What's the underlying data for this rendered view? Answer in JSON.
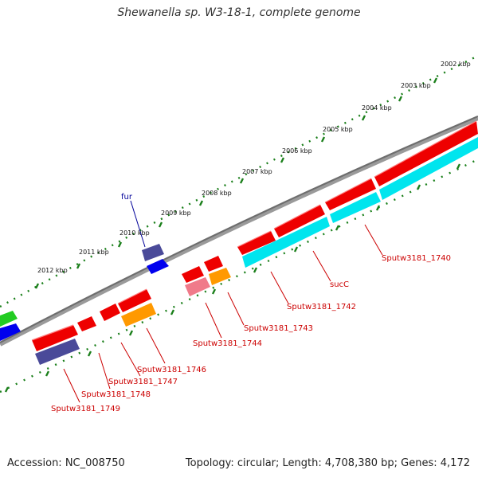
{
  "title": "Shewanella sp. W3-18-1, complete genome",
  "footer": {
    "accession": "Accession: NC_008750",
    "summary": "Topology: circular; Length: 4,708,380 bp; Genes: 4,172"
  },
  "colors": {
    "backbone": "#808080",
    "ruler_dots": "#1a7f1a",
    "gene_label": "#cc0000",
    "highlight_label": "#000099"
  },
  "ruler_labels": [
    "2002 kbp",
    "2003 kbp",
    "2004 kbp",
    "2005 kbp",
    "2006 kbp",
    "2007 kbp",
    "2008 kbp",
    "2009 kbp",
    "2010 kbp",
    "2011 kbp",
    "2012 kbp"
  ],
  "gene_labels": [
    {
      "text": "Sputw3181_1740",
      "color": "#cc0000"
    },
    {
      "text": "sucC",
      "color": "#cc0000"
    },
    {
      "text": "Sputw3181_1742",
      "color": "#cc0000"
    },
    {
      "text": "Sputw3181_1743",
      "color": "#cc0000"
    },
    {
      "text": "Sputw3181_1744",
      "color": "#cc0000"
    },
    {
      "text": "Sputw3181_1746",
      "color": "#cc0000"
    },
    {
      "text": "Sputw3181_1747",
      "color": "#cc0000"
    },
    {
      "text": "Sputw3181_1748",
      "color": "#cc0000"
    },
    {
      "text": "Sputw3181_1749",
      "color": "#cc0000"
    },
    {
      "text": "fur",
      "color": "#000099"
    }
  ],
  "feature_colors": [
    "red",
    "cyan",
    "blue-purple",
    "orange",
    "pink",
    "blue",
    "green"
  ]
}
